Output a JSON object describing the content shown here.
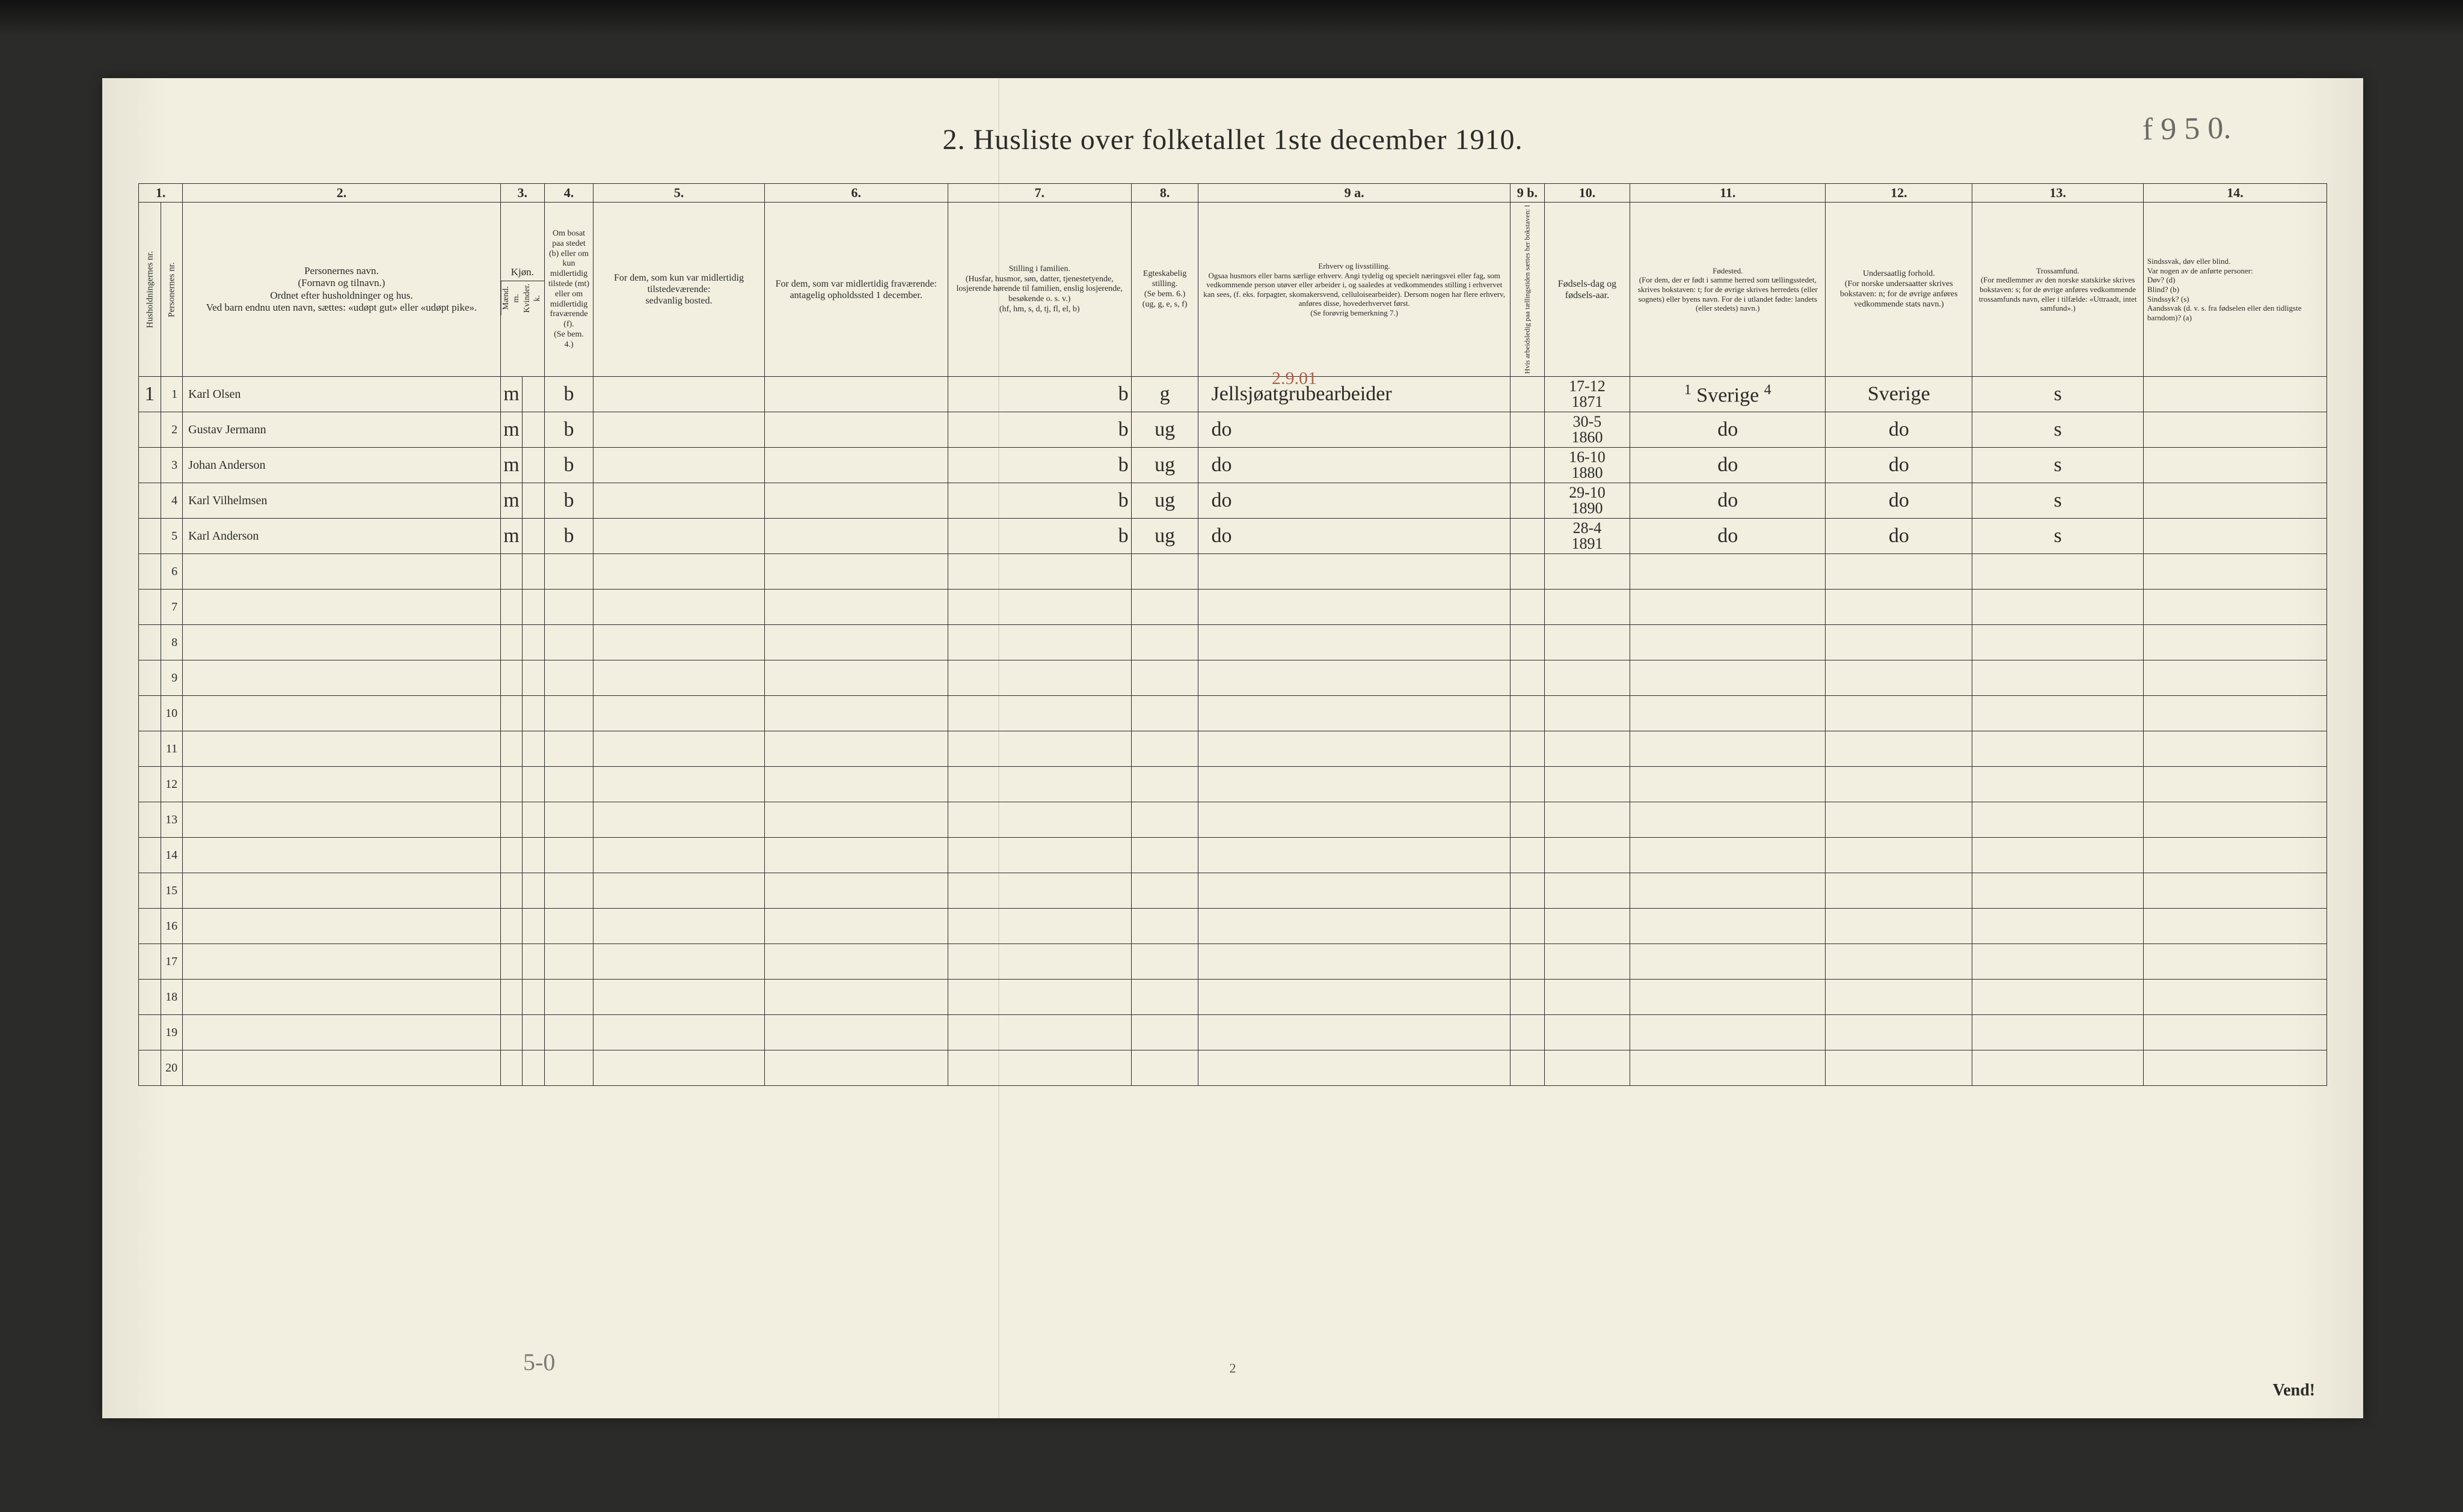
{
  "title": "2.  Husliste over folketallet 1ste december 1910.",
  "top_annotation": "f 9 5 0.",
  "bottom_annotation_left": "5-0",
  "page_number_bottom": "2",
  "vend_label": "Vend!",
  "red_occ_annot": "2.9.01",
  "col_numbers": [
    "1.",
    "2.",
    "3.",
    "4.",
    "5.",
    "6.",
    "7.",
    "8.",
    "9 a.",
    "9 b.",
    "10.",
    "11.",
    "12.",
    "13.",
    "14."
  ],
  "headers": {
    "hh": "Husholdningernes nr.",
    "pn": "Personernes nr.",
    "name": "Personernes navn.\n(Fornavn og tilnavn.)\nOrdnet efter husholdninger og hus.\nVed barn endnu uten navn, sættes: «udøpt gut» eller «udøpt pike».",
    "sex": "Kjøn.",
    "sex_m": "Mænd.\nm.",
    "sex_k": "Kvinder.\nk.",
    "bosat": "Om bosat paa stedet (b) eller om kun midlertidig tilstede (mt) eller om midlertidig fraværende (f).\n(Se bem. 4.)",
    "absent": "For dem, som kun var midlertidig tilstedeværende:\nsedvanlig bosted.",
    "temp": "For dem, som var midlertidig fraværende:\nantagelig opholdssted 1 december.",
    "family": "Stilling i familien.\n(Husfar, husmor, søn, datter, tjenestetyende, losjerende hørende til familien, enslig losjerende, besøkende o. s. v.)\n(hf, hm, s, d, tj, fl, el, b)",
    "marital": "Egteskabelig stilling.\n(Se bem. 6.)\n(ug, g, e, s, f)",
    "occupation": "Erhverv og livsstilling.\nOgsaa husmors eller barns særlige erhverv. Angi tydelig og specielt næringsvei eller fag, som vedkommende person utøver eller arbeider i, og saaledes at vedkommendes stilling i erhvervet kan sees, (f. eks. forpagter, skomakersvend, celluloisearbeider). Dersom nogen har flere erhverv, anføres disse, hovederhvervet først.\n(Se forøvrig bemerkning 7.)",
    "col9b": "Hvis arbeidsledig paa tællingstiden sættes her bokstaven: l",
    "birthdate": "Fødsels-dag og fødsels-aar.",
    "birthplace": "Fødested.\n(For dem, der er født i samme herred som tællingsstedet, skrives bokstaven: t; for de øvrige skrives herredets (eller sognets) eller byens navn. For de i utlandet fødte: landets (eller stedets) navn.)",
    "nationality": "Undersaatlig forhold.\n(For norske undersaatter skrives bokstaven: n; for de øvrige anføres vedkommende stats navn.)",
    "religion": "Trossamfund.\n(For medlemmer av den norske statskirke skrives bokstaven: s; for de øvrige anføres vedkommende trossamfunds navn, eller i tilfælde: «Uttraadt, intet samfund».)",
    "disability": "Sindssvak, døv eller blind.\nVar nogen av de anførte personer:\nDøv? (d)\nBlind? (b)\nSindssyk? (s)\nAandssvak (d. v. s. fra fødselen eller den tidligste barndom)? (a)"
  },
  "rows": [
    {
      "hh": "1",
      "pn": "1",
      "name": "Karl Olsen",
      "sex_m": "m",
      "sex_k": "",
      "bosat": "b",
      "family": "b",
      "marital": "g",
      "occ": "Jellsjøatgrubearbeider",
      "birth": "17-12\n1871",
      "birthplace_pre": "1",
      "birthplace": "Sverige",
      "birthplace_suf": "4",
      "nat": "Sverige",
      "rel": "s"
    },
    {
      "hh": "",
      "pn": "2",
      "name": "Gustav Jermann",
      "sex_m": "m",
      "sex_k": "",
      "bosat": "b",
      "family": "b",
      "marital": "ug",
      "occ": "do",
      "birth": "30-5\n1860",
      "birthplace": "do",
      "nat": "do",
      "rel": "s"
    },
    {
      "hh": "",
      "pn": "3",
      "name": "Johan Anderson",
      "sex_m": "m",
      "sex_k": "",
      "bosat": "b",
      "family": "b",
      "marital": "ug",
      "occ": "do",
      "birth": "16-10\n1880",
      "birthplace": "do",
      "nat": "do",
      "rel": "s"
    },
    {
      "hh": "",
      "pn": "4",
      "name": "Karl Vilhelmsen",
      "sex_m": "m",
      "sex_k": "",
      "bosat": "b",
      "family": "b",
      "marital": "ug",
      "occ": "do",
      "birth": "29-10\n1890",
      "birthplace": "do",
      "nat": "do",
      "rel": "s"
    },
    {
      "hh": "",
      "pn": "5",
      "name": "Karl Anderson",
      "sex_m": "m",
      "sex_k": "",
      "bosat": "b",
      "family": "b",
      "marital": "ug",
      "occ": "do",
      "birth": "28-4\n1891",
      "birthplace": "do",
      "nat": "do",
      "rel": "s"
    }
  ],
  "blank_row_start": 6,
  "blank_row_end": 20,
  "colors": {
    "paper": "#f2efe0",
    "ink": "#2b2b29",
    "hand": "#2e2e2c",
    "scan_bg": "#2b2b29",
    "red": "#b0604a"
  }
}
